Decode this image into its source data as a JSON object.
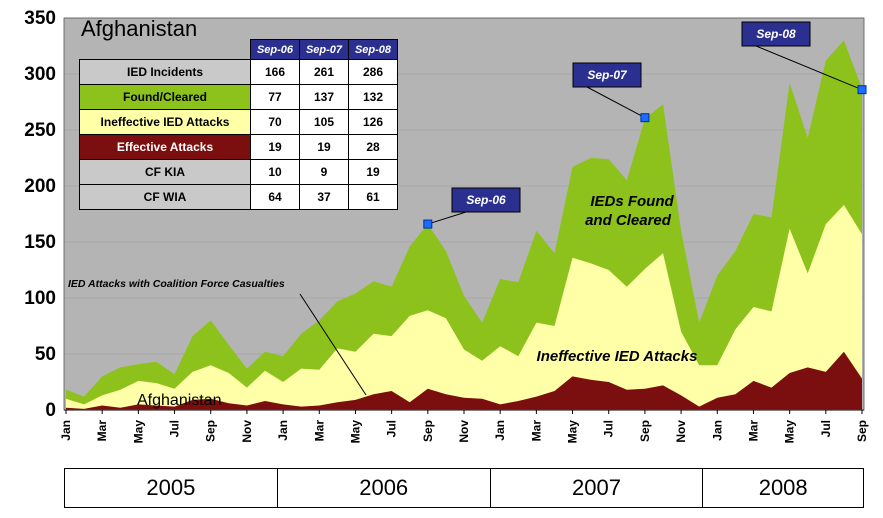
{
  "chart_data": {
    "type": "area",
    "title": "Afghanistan",
    "ylim": [
      0,
      350
    ],
    "yticks": [
      0,
      50,
      100,
      150,
      200,
      250,
      300,
      350
    ],
    "months": [
      "Jan 2005",
      "Feb 2005",
      "Mar 2005",
      "Apr 2005",
      "May 2005",
      "Jun 2005",
      "Jul 2005",
      "Aug 2005",
      "Sep 2005",
      "Oct 2005",
      "Nov 2005",
      "Dec 2005",
      "Jan 2006",
      "Feb 2006",
      "Mar 2006",
      "Apr 2006",
      "May 2006",
      "Jun 2006",
      "Jul 2006",
      "Aug 2006",
      "Sep 2006",
      "Oct 2006",
      "Nov 2006",
      "Dec 2006",
      "Jan 2007",
      "Feb 2007",
      "Mar 2007",
      "Apr 2007",
      "May 2007",
      "Jun 2007",
      "Jul 2007",
      "Aug 2007",
      "Sep 2007",
      "Oct 2007",
      "Nov 2007",
      "Dec 2007",
      "Jan 2008",
      "Feb 2008",
      "Mar 2008",
      "Apr 2008",
      "May 2008",
      "Jun 2008",
      "Jul 2008",
      "Aug 2008",
      "Sep 2008"
    ],
    "tick_labels": [
      {
        "i": 0,
        "label": "Jan"
      },
      {
        "i": 2,
        "label": "Mar"
      },
      {
        "i": 4,
        "label": "May"
      },
      {
        "i": 6,
        "label": "Jul"
      },
      {
        "i": 8,
        "label": "Sep"
      },
      {
        "i": 10,
        "label": "Nov"
      },
      {
        "i": 12,
        "label": "Jan"
      },
      {
        "i": 14,
        "label": "Mar"
      },
      {
        "i": 16,
        "label": "May"
      },
      {
        "i": 18,
        "label": "Jul"
      },
      {
        "i": 20,
        "label": "Sep"
      },
      {
        "i": 22,
        "label": "Nov"
      },
      {
        "i": 24,
        "label": "Jan"
      },
      {
        "i": 26,
        "label": "Mar"
      },
      {
        "i": 28,
        "label": "May"
      },
      {
        "i": 30,
        "label": "Jul"
      },
      {
        "i": 32,
        "label": "Sep"
      },
      {
        "i": 34,
        "label": "Nov"
      },
      {
        "i": 36,
        "label": "Jan"
      },
      {
        "i": 38,
        "label": "Mar"
      },
      {
        "i": 40,
        "label": "May"
      },
      {
        "i": 42,
        "label": "Jul"
      },
      {
        "i": 44,
        "label": "Sep"
      }
    ],
    "series": [
      {
        "name": "IEDs Found and Cleared",
        "color": "#8cc21b",
        "values": [
          18,
          12,
          30,
          38,
          41,
          43,
          32,
          66,
          80,
          58,
          37,
          52,
          48,
          68,
          80,
          97,
          104,
          115,
          110,
          146,
          166,
          142,
          102,
          78,
          117,
          114,
          160,
          140,
          217,
          225,
          224,
          205,
          260,
          273,
          160,
          78,
          120,
          142,
          175,
          172,
          292,
          243,
          312,
          330,
          287
        ]
      },
      {
        "name": "Ineffective IED Attacks",
        "color": "#ffffa8",
        "values": [
          10,
          5,
          13,
          18,
          26,
          24,
          19,
          34,
          40,
          33,
          20,
          35,
          25,
          37,
          36,
          55,
          52,
          68,
          66,
          84,
          89,
          82,
          54,
          44,
          57,
          48,
          78,
          75,
          136,
          131,
          125,
          110,
          126,
          140,
          70,
          40,
          40,
          72,
          92,
          88,
          162,
          122,
          166,
          183,
          157
        ]
      },
      {
        "name": "IED Attacks with Coalition Force Casualties",
        "color": "#7b0f0f",
        "values": [
          2,
          1,
          4,
          2,
          5,
          4,
          3,
          9,
          10,
          6,
          4,
          8,
          5,
          3,
          4,
          7,
          9,
          14,
          17,
          7,
          19,
          14,
          11,
          10,
          5,
          8,
          12,
          17,
          30,
          27,
          25,
          18,
          19,
          22,
          13,
          3,
          11,
          14,
          26,
          20,
          33,
          38,
          34,
          52,
          28
        ]
      }
    ],
    "background_series": {
      "color": "#b4b4b4",
      "values": [
        18,
        12,
        30,
        38,
        41,
        43,
        32,
        66,
        80,
        58,
        37,
        52,
        48,
        68,
        80,
        97,
        104,
        115,
        110,
        146,
        166,
        142,
        102,
        78,
        117,
        114,
        160,
        140,
        217,
        225,
        224,
        205,
        260,
        273,
        160,
        78,
        120,
        142,
        175,
        172,
        292,
        243,
        312,
        330,
        287
      ]
    },
    "markers": [
      {
        "label": "Sep-06",
        "i": 20,
        "value": 166
      },
      {
        "label": "Sep-07",
        "i": 32,
        "value": 261
      },
      {
        "label": "Sep-08",
        "i": 44,
        "value": 286
      }
    ],
    "annotations": {
      "found": [
        "IEDs Found",
        "and Cleared"
      ],
      "ineffective": "Ineffective IED Attacks",
      "casualties": "IED Attacks with Coalition Force Casualties",
      "afghanistan": "Afghanistan"
    },
    "years": [
      "2005",
      "2006",
      "2007",
      "2008"
    ],
    "year_spans": [
      12,
      12,
      12,
      9
    ],
    "table": {
      "headers": [
        "Sep-06",
        "Sep-07",
        "Sep-08"
      ],
      "rows": [
        {
          "label": "IED Incidents",
          "values": [
            "166",
            "261",
            "286"
          ]
        },
        {
          "label": "Found/Cleared",
          "values": [
            "77",
            "137",
            "132"
          ]
        },
        {
          "label": "Ineffective IED Attacks",
          "values": [
            "70",
            "105",
            "126"
          ]
        },
        {
          "label": "Effective Attacks",
          "values": [
            "19",
            "19",
            "28"
          ]
        },
        {
          "label": "CF KIA",
          "values": [
            "10",
            "9",
            "19"
          ]
        },
        {
          "label": "CF WIA",
          "values": [
            "64",
            "37",
            "61"
          ]
        }
      ]
    }
  }
}
